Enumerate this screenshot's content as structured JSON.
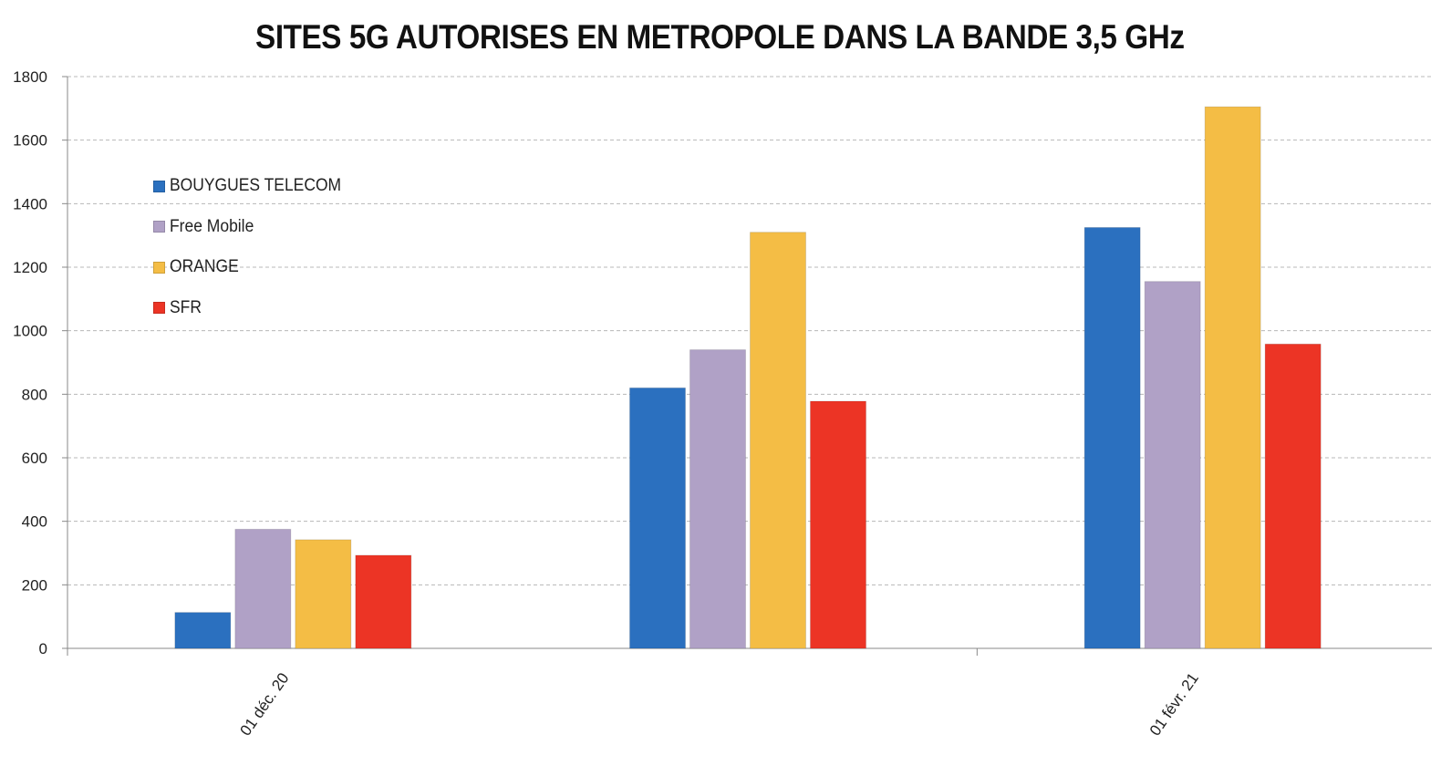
{
  "chart_data": {
    "type": "bar",
    "title": "SITES 5G AUTORISES EN METROPOLE DANS LA BANDE 3,5 GHz",
    "xlabel": "",
    "ylabel": "",
    "ylim": [
      0,
      1800
    ],
    "yticks": [
      0,
      200,
      400,
      600,
      800,
      1000,
      1200,
      1400,
      1600,
      1800
    ],
    "grid": true,
    "legend_position": "left",
    "categories": [
      "01 déc. 20",
      "",
      "01 févr. 21"
    ],
    "series": [
      {
        "name": "BOUYGUES TELECOM",
        "color": "#2b70bf",
        "values": [
          113,
          820,
          1325
        ]
      },
      {
        "name": "Free Mobile",
        "color": "#b0a1c6",
        "values": [
          375,
          940,
          1155
        ]
      },
      {
        "name": "ORANGE",
        "color": "#f4bd45",
        "values": [
          342,
          1310,
          1705
        ]
      },
      {
        "name": "SFR",
        "color": "#ec3425",
        "values": [
          293,
          778,
          958
        ]
      }
    ]
  }
}
